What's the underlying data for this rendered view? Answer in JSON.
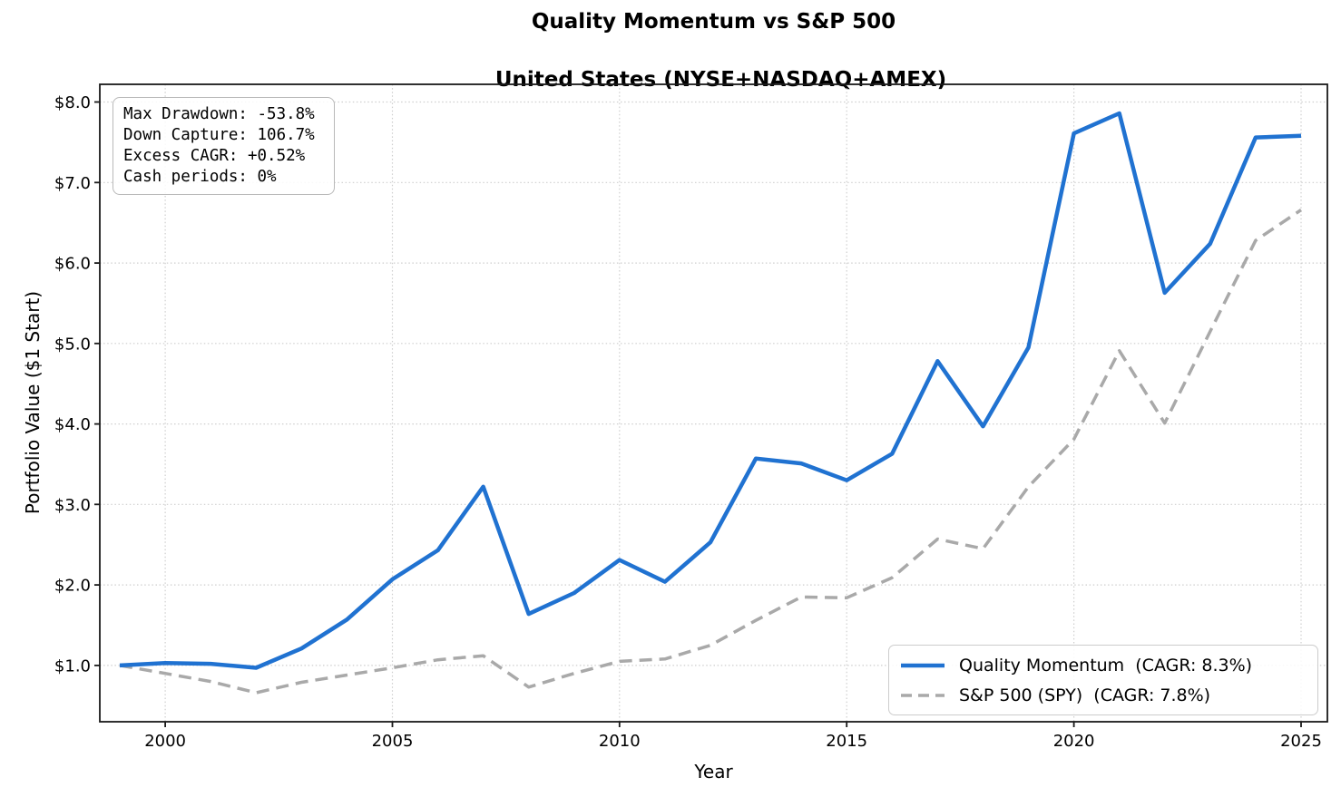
{
  "stats_box": {
    "lines": [
      "Max Drawdown: -53.8%",
      "Down Capture: 106.7%",
      "Excess CAGR: +0.52%",
      "Cash periods: 0%"
    ]
  },
  "chart_data": {
    "type": "line",
    "title": "Quality Momentum vs S&P 500",
    "subtitle": "United States (NYSE+NASDAQ+AMEX)",
    "xlabel": "Year",
    "ylabel": "Portfolio Value ($1 Start)",
    "x": [
      1999,
      2000,
      2001,
      2002,
      2003,
      2004,
      2005,
      2006,
      2007,
      2008,
      2009,
      2010,
      2011,
      2012,
      2013,
      2014,
      2015,
      2016,
      2017,
      2018,
      2019,
      2020,
      2021,
      2022,
      2023,
      2024,
      2025
    ],
    "series": [
      {
        "id": "quality-momentum",
        "name": "Quality Momentum  (CAGR: 8.3%)",
        "color": "#2072d1",
        "line_style": "solid",
        "values": [
          1.0,
          1.03,
          1.02,
          0.97,
          1.21,
          1.57,
          2.07,
          2.43,
          3.22,
          1.64,
          1.9,
          2.31,
          2.04,
          2.53,
          3.57,
          3.51,
          3.3,
          3.63,
          4.78,
          3.97,
          4.95,
          7.61,
          7.86,
          5.63,
          6.24,
          7.56,
          7.58
        ]
      },
      {
        "id": "sp500-spy",
        "name": "S&P 500 (SPY)  (CAGR: 7.8%)",
        "color": "#a9a9a9",
        "line_style": "dashed",
        "values": [
          1.0,
          0.9,
          0.8,
          0.66,
          0.79,
          0.88,
          0.97,
          1.07,
          1.12,
          0.73,
          0.9,
          1.05,
          1.08,
          1.25,
          1.56,
          1.85,
          1.84,
          2.09,
          2.57,
          2.45,
          3.22,
          3.81,
          4.91,
          4.01,
          5.15,
          6.28,
          6.66
        ]
      }
    ],
    "x_ticks": {
      "values": [
        2000,
        2005,
        2010,
        2015,
        2020,
        2025
      ],
      "labels": [
        "2000",
        "2005",
        "2010",
        "2015",
        "2020",
        "2025"
      ]
    },
    "y_ticks": {
      "values": [
        1,
        2,
        3,
        4,
        5,
        6,
        7,
        8
      ],
      "labels": [
        "$1.0",
        "$2.0",
        "$3.0",
        "$4.0",
        "$5.0",
        "$6.0",
        "$7.0",
        "$8.0"
      ]
    },
    "xlim": [
      1998.56,
      2025.58
    ],
    "ylim": [
      0.3,
      8.22
    ],
    "grid": true,
    "legend_position": "lower right"
  }
}
